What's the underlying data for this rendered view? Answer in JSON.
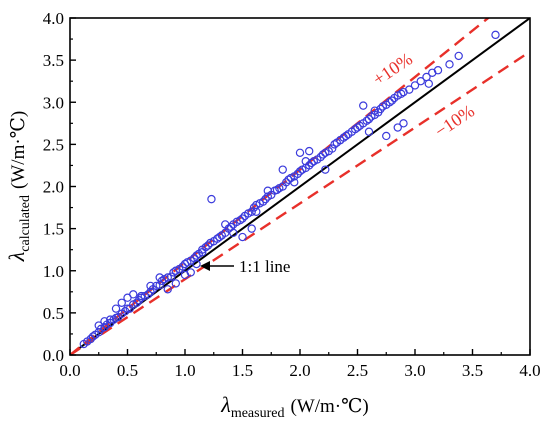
{
  "chart_data": {
    "type": "scatter",
    "xlabel": {
      "symbol": "λ",
      "subscript": "measured",
      "unit": "(W/m·℃)"
    },
    "ylabel": {
      "symbol": "λ",
      "subscript": "calculated",
      "unit": "(W/m·℃)"
    },
    "xlim": [
      0.0,
      4.0
    ],
    "ylim": [
      0.0,
      4.0
    ],
    "xticks": [
      "0.0",
      "0.5",
      "1.0",
      "1.5",
      "2.0",
      "2.5",
      "3.0",
      "3.5",
      "4.0"
    ],
    "yticks": [
      "0.0",
      "0.5",
      "1.0",
      "1.5",
      "2.0",
      "2.5",
      "3.0",
      "3.5",
      "4.0"
    ],
    "grid": false,
    "marker_color": "#3b3bdc",
    "reference_lines": [
      {
        "label": "1:1 line",
        "slope": 1.0,
        "style": "solid",
        "color": "#000000"
      },
      {
        "label": "+10%",
        "slope": 1.1,
        "style": "dashed",
        "color": "#e8302a"
      },
      {
        "label": "−10%",
        "slope": 0.9,
        "style": "dashed",
        "color": "#e8302a"
      }
    ],
    "series": [
      {
        "marker": "open-circle",
        "x": [
          0.12,
          0.15,
          0.18,
          0.2,
          0.22,
          0.25,
          0.27,
          0.3,
          0.32,
          0.35,
          0.38,
          0.4,
          0.42,
          0.45,
          0.48,
          0.5,
          0.5,
          0.52,
          0.55,
          0.58,
          0.6,
          0.62,
          0.65,
          0.68,
          0.7,
          0.72,
          0.75,
          0.78,
          0.8,
          0.82,
          0.85,
          0.88,
          0.9,
          0.92,
          0.95,
          0.98,
          1.0,
          1.0,
          1.02,
          1.05,
          1.08,
          1.1,
          1.12,
          1.15,
          1.18,
          1.2,
          1.22,
          1.25,
          1.28,
          1.3,
          1.32,
          1.35,
          1.38,
          1.4,
          1.42,
          1.45,
          1.48,
          1.5,
          1.52,
          1.55,
          1.58,
          1.6,
          1.62,
          1.65,
          1.68,
          1.7,
          1.72,
          1.75,
          1.78,
          1.8,
          1.82,
          1.85,
          1.88,
          1.9,
          1.92,
          1.95,
          1.98,
          2.0,
          2.02,
          2.05,
          2.08,
          2.1,
          2.12,
          2.15,
          2.18,
          2.2,
          2.22,
          2.25,
          2.28,
          2.3,
          2.32,
          2.35,
          2.38,
          2.4,
          2.42,
          2.45,
          2.48,
          2.5,
          2.52,
          2.55,
          2.58,
          2.6,
          2.62,
          2.65,
          2.68,
          2.7,
          2.72,
          2.75,
          2.78,
          2.8,
          2.82,
          2.85,
          2.88,
          2.9,
          2.95,
          3.0,
          3.05,
          3.1,
          3.15,
          3.2,
          3.3,
          3.38,
          3.7,
          1.23,
          0.4,
          0.45,
          0.3,
          0.55,
          0.78,
          0.62,
          0.92,
          0.85,
          1.05,
          1.15,
          1.35,
          1.42,
          1.58,
          1.62,
          1.72,
          1.85,
          2.0,
          2.05,
          2.08,
          2.35,
          2.55,
          2.6,
          2.85,
          2.9,
          0.35,
          0.25,
          1.5,
          1.95,
          2.22,
          2.65,
          2.75,
          3.12,
          1.1,
          0.7
        ],
        "y": [
          0.13,
          0.16,
          0.19,
          0.22,
          0.24,
          0.27,
          0.31,
          0.33,
          0.36,
          0.38,
          0.42,
          0.44,
          0.45,
          0.49,
          0.52,
          0.55,
          0.68,
          0.55,
          0.6,
          0.62,
          0.65,
          0.68,
          0.7,
          0.72,
          0.75,
          0.78,
          0.82,
          0.83,
          0.88,
          0.9,
          0.92,
          0.93,
          0.98,
          1.0,
          1.02,
          1.05,
          1.08,
          0.95,
          1.1,
          1.12,
          1.15,
          1.18,
          1.2,
          1.25,
          1.28,
          1.3,
          1.33,
          1.35,
          1.38,
          1.4,
          1.42,
          1.45,
          1.5,
          1.52,
          1.55,
          1.58,
          1.6,
          1.62,
          1.65,
          1.68,
          1.7,
          1.75,
          1.78,
          1.8,
          1.82,
          1.85,
          1.88,
          1.9,
          1.95,
          1.96,
          1.98,
          2.0,
          2.05,
          2.08,
          2.1,
          2.12,
          2.15,
          2.18,
          2.2,
          2.22,
          2.25,
          2.28,
          2.3,
          2.32,
          2.35,
          2.38,
          2.4,
          2.42,
          2.45,
          2.5,
          2.52,
          2.55,
          2.58,
          2.6,
          2.62,
          2.65,
          2.68,
          2.7,
          2.72,
          2.75,
          2.78,
          2.8,
          2.83,
          2.85,
          2.88,
          2.92,
          2.95,
          2.97,
          3.0,
          3.02,
          3.05,
          3.08,
          3.1,
          3.12,
          3.15,
          3.2,
          3.25,
          3.3,
          3.35,
          3.38,
          3.45,
          3.55,
          3.8,
          1.85,
          0.55,
          0.62,
          0.4,
          0.72,
          0.92,
          0.7,
          0.85,
          0.78,
          0.98,
          1.22,
          1.55,
          1.45,
          1.5,
          1.7,
          1.95,
          2.2,
          2.4,
          2.3,
          2.42,
          2.55,
          2.96,
          2.65,
          2.7,
          2.75,
          0.42,
          0.35,
          1.4,
          2.05,
          2.2,
          2.9,
          2.6,
          3.22,
          1.08,
          0.82
        ]
      }
    ],
    "annotations": [
      {
        "text": "+10%",
        "color": "#e8302a"
      },
      {
        "text": "−10%",
        "color": "#e8302a"
      },
      {
        "text": "1:1 line",
        "color": "#000000",
        "arrow": true
      }
    ]
  }
}
